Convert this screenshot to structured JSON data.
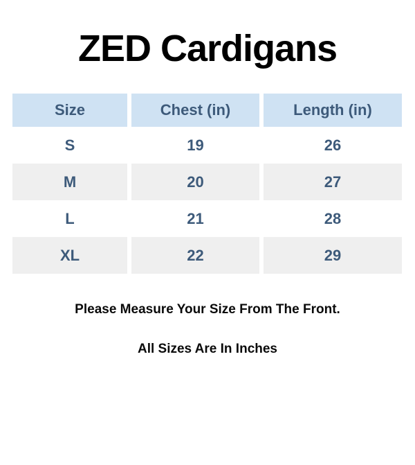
{
  "title": "ZED Cardigans",
  "table": {
    "columns": [
      "Size",
      "Chest (in)",
      "Length (in)"
    ],
    "rows": [
      [
        "S",
        "19",
        "26"
      ],
      [
        "M",
        "20",
        "27"
      ],
      [
        "L",
        "21",
        "28"
      ],
      [
        "XL",
        "22",
        "29"
      ]
    ]
  },
  "notes": {
    "measure": "Please Measure Your Size From The Front.",
    "units": "All Sizes Are In Inches"
  },
  "colors": {
    "header_bg": "#cfe2f3",
    "stripe_bg": "#efefef",
    "table_text": "#3d5a7a",
    "title_text": "#000000",
    "page_bg": "#ffffff"
  }
}
